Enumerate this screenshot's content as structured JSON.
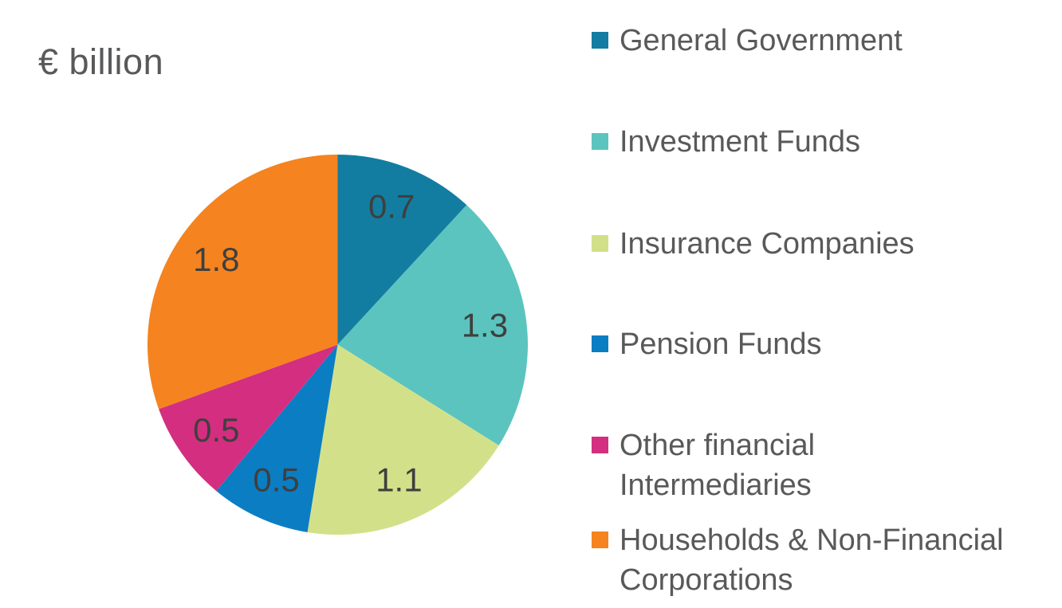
{
  "page": {
    "background": "#FFFFFF"
  },
  "chart_data": {
    "type": "pie",
    "title": "€ billion",
    "total": 5.9,
    "start_angle_deg": 0,
    "direction": "clockwise",
    "legend_position": "right",
    "value_labels": "inside",
    "title_color": "#58595B",
    "value_label_color": "#3F3F3F",
    "legend_text_color": "#595959",
    "slices": [
      {
        "label": "General Government",
        "value": 0.7,
        "display_value": "0.7",
        "color": "#137DA1",
        "legend_lines": [
          "General Government"
        ]
      },
      {
        "label": "Investment Funds",
        "value": 1.3,
        "display_value": "1.3",
        "color": "#5BC4BF",
        "legend_lines": [
          "Investment Funds"
        ]
      },
      {
        "label": "Insurance Companies",
        "value": 1.1,
        "display_value": "1.1",
        "color": "#D2E189",
        "legend_lines": [
          "Insurance Companies"
        ]
      },
      {
        "label": "Pension Funds",
        "value": 0.5,
        "display_value": "0.5",
        "color": "#0B7DC3",
        "legend_lines": [
          "Pension Funds"
        ]
      },
      {
        "label": "Other financial Intermediaries",
        "value": 0.5,
        "display_value": "0.5",
        "color": "#D42E80",
        "legend_lines": [
          "Other financial",
          "Intermediaries"
        ]
      },
      {
        "label": "Households & Non-Financial Corporations",
        "value": 1.8,
        "display_value": "1.8",
        "color": "#F5831F",
        "legend_lines": [
          "Households & Non-Financial",
          "Corporations"
        ]
      }
    ]
  }
}
